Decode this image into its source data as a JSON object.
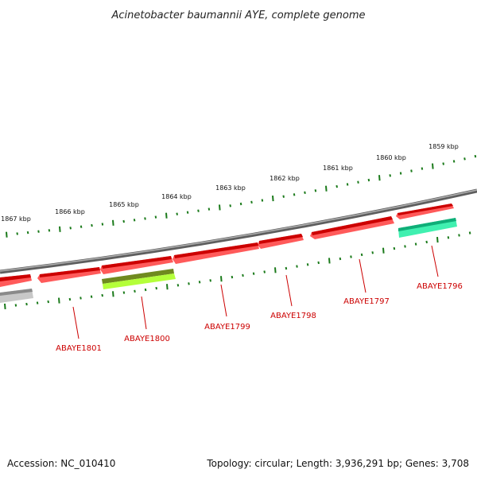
{
  "title": "Acinetobacter baumannii AYE, complete genome",
  "footer": {
    "accession": "Accession: NC_010410",
    "topology": "Topology: circular; Length: 3,936,291 bp; Genes: 3,708"
  },
  "colors": {
    "backbone": "#8a8a8a",
    "ticks": "#1a7a1a",
    "cds": "#ee0000",
    "label": "#cc0000",
    "olive_feature": "#6f8a1f",
    "lime_feature": "#b4ff3a",
    "teal_feature": "#1fd89a",
    "gray_feature": "#b8b8b8"
  },
  "scale": {
    "unit": "kbp",
    "labels": [
      "1859 kbp",
      "1860 kbp",
      "1861 kbp",
      "1862 kbp",
      "1863 kbp",
      "1864 kbp",
      "1865 kbp",
      "1866 kbp",
      "1867 kbp"
    ]
  },
  "genes": [
    {
      "name": "ABAYE1796"
    },
    {
      "name": "ABAYE1797"
    },
    {
      "name": "ABAYE1798"
    },
    {
      "name": "ABAYE1799"
    },
    {
      "name": "ABAYE1800"
    },
    {
      "name": "ABAYE1801"
    }
  ]
}
